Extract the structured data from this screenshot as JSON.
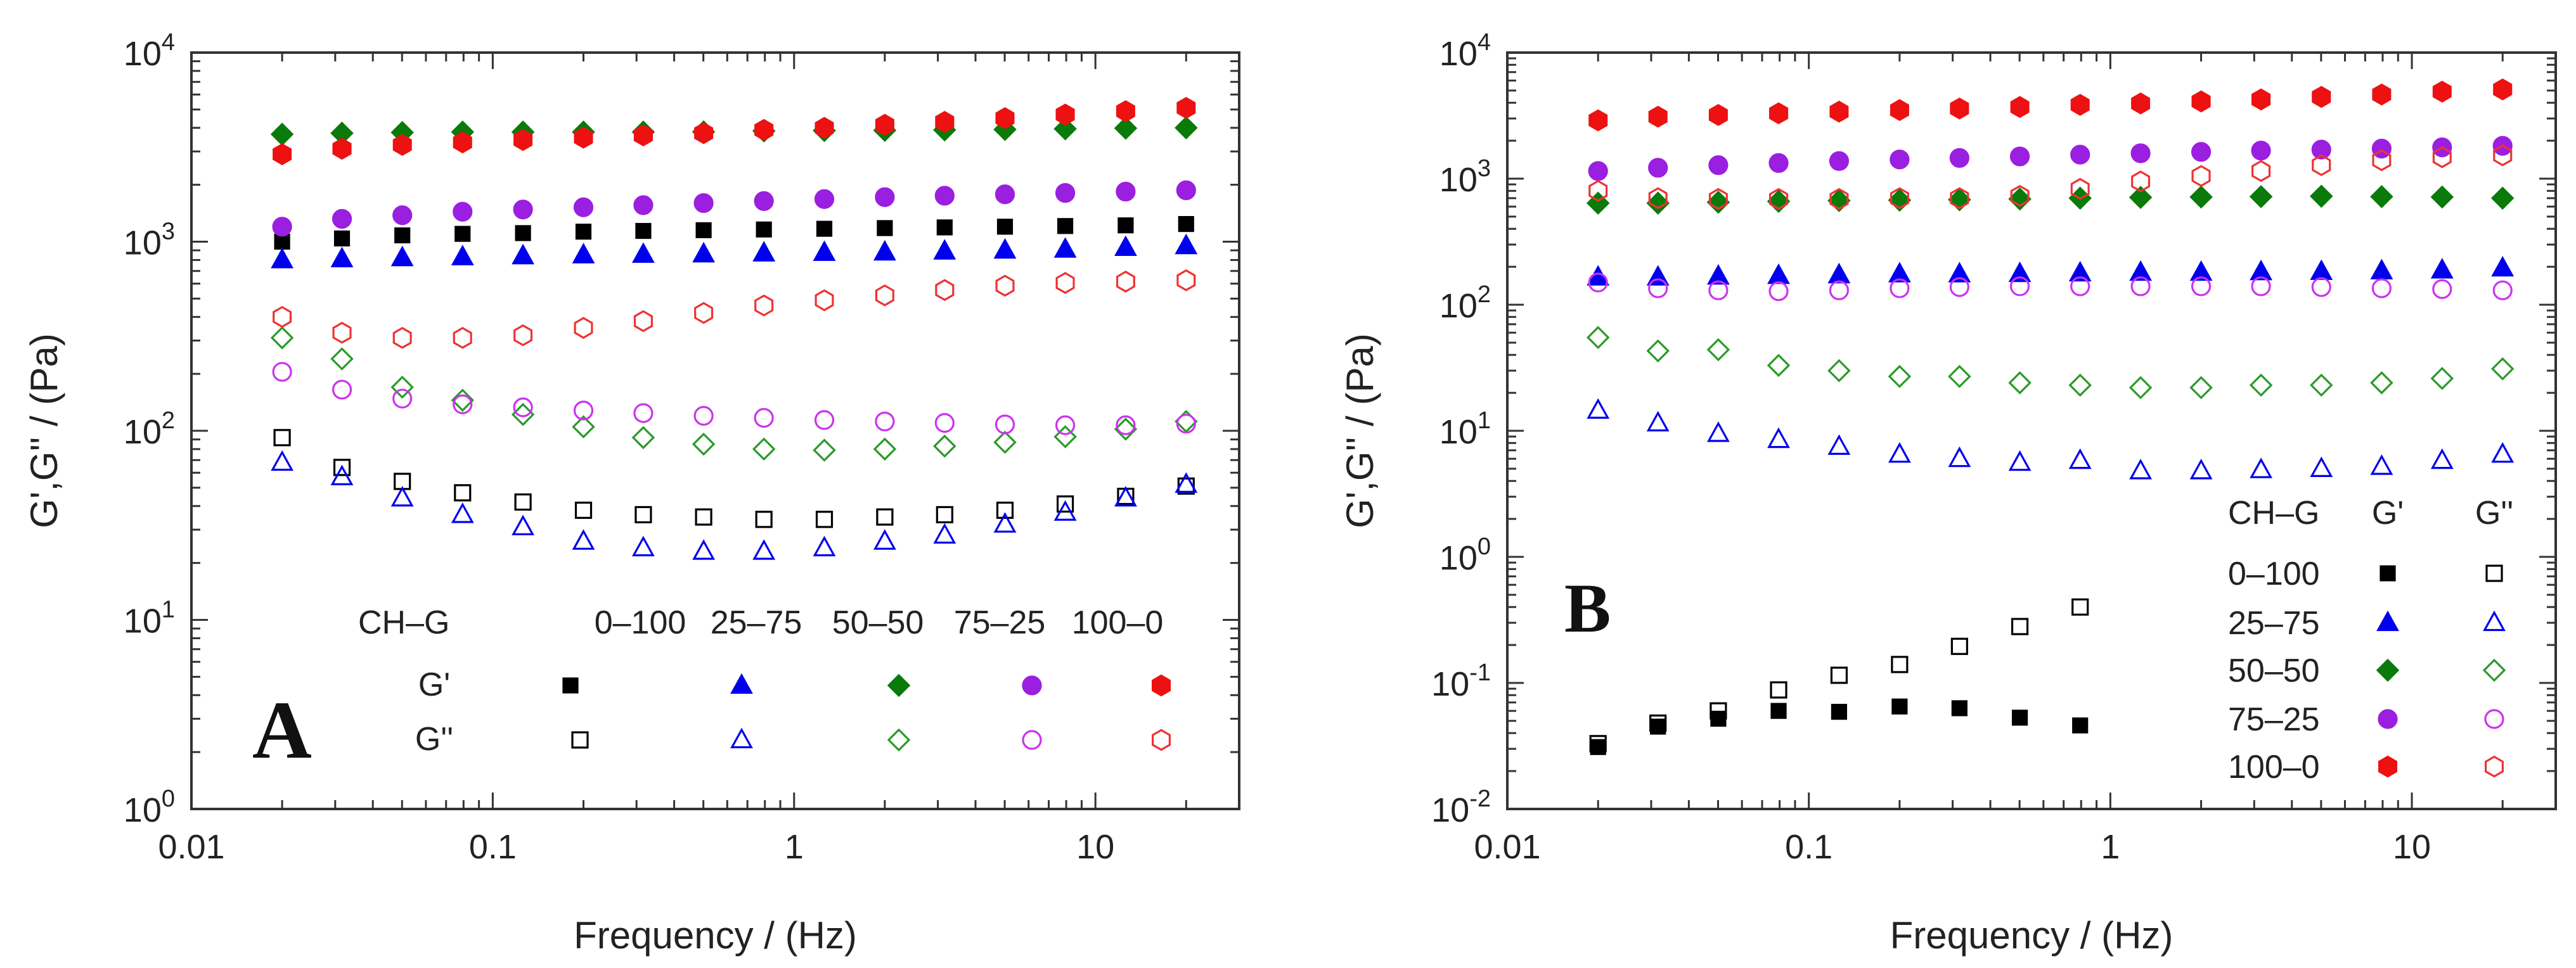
{
  "chart_data": [
    {
      "type": "scatter",
      "panel": "A",
      "xlabel": "Frequency / (Hz)",
      "ylabel": "G',G'' / (Pa)",
      "xscale": "log",
      "yscale": "log",
      "xlim": [
        0.01,
        30
      ],
      "ylim": [
        1,
        10000
      ],
      "x_ticks": [
        {
          "v": 0.01,
          "t": "0.01"
        },
        {
          "v": 0.1,
          "t": "0.1"
        },
        {
          "v": 1,
          "t": "1"
        },
        {
          "v": 10,
          "t": "10"
        }
      ],
      "y_ticks": [
        {
          "v": 1,
          "b": "10",
          "e": "0"
        },
        {
          "v": 10,
          "b": "10",
          "e": "1"
        },
        {
          "v": 100,
          "b": "10",
          "e": "2"
        },
        {
          "v": 1000,
          "b": "10",
          "e": "3"
        },
        {
          "v": 10000,
          "b": "10",
          "e": "4"
        }
      ],
      "legend": {
        "layout": "columns",
        "placement": "bottom-right",
        "header": "CH–G",
        "row_labels": [
          "G'",
          "G''"
        ],
        "entries": [
          "0–100",
          "25–75",
          "50–50",
          "75–25",
          "100–0"
        ]
      },
      "x": [
        0.02,
        0.0316,
        0.0501,
        0.0794,
        0.126,
        0.2,
        0.316,
        0.501,
        0.794,
        1.26,
        2.0,
        3.16,
        5.01,
        7.94,
        12.6,
        20.0
      ],
      "series": [
        {
          "name": "0–100 G'",
          "group": "0–100",
          "modulus": "G'",
          "color": "#000000",
          "marker": "square",
          "filled": true,
          "values": [
            1000,
            1040,
            1080,
            1100,
            1110,
            1130,
            1140,
            1150,
            1160,
            1170,
            1180,
            1190,
            1200,
            1210,
            1220,
            1240
          ]
        },
        {
          "name": "25–75 G'",
          "group": "25–75",
          "modulus": "G'",
          "color": "#0000ee",
          "marker": "triangle",
          "filled": true,
          "values": [
            800,
            810,
            820,
            830,
            840,
            850,
            855,
            860,
            870,
            875,
            880,
            890,
            900,
            910,
            930,
            950
          ]
        },
        {
          "name": "50–50 G'",
          "group": "50–50",
          "modulus": "G'",
          "color": "#0a7a0a",
          "marker": "diamond",
          "filled": true,
          "values": [
            3700,
            3750,
            3780,
            3800,
            3800,
            3800,
            3800,
            3810,
            3850,
            3870,
            3880,
            3900,
            3920,
            3950,
            3980,
            4000
          ]
        },
        {
          "name": "75–25 G'",
          "group": "75–25",
          "modulus": "G'",
          "color": "#9a1fe0",
          "marker": "circle",
          "filled": true,
          "values": [
            1200,
            1320,
            1380,
            1440,
            1480,
            1520,
            1560,
            1600,
            1640,
            1680,
            1720,
            1750,
            1780,
            1810,
            1840,
            1870
          ]
        },
        {
          "name": "100–0 G'",
          "group": "100–0",
          "modulus": "G'",
          "color": "#ee1111",
          "marker": "hexagon",
          "filled": true,
          "values": [
            2900,
            3100,
            3250,
            3350,
            3450,
            3550,
            3650,
            3750,
            3900,
            4000,
            4150,
            4300,
            4500,
            4700,
            4900,
            5100
          ]
        },
        {
          "name": "0–100 G''",
          "group": "0–100",
          "modulus": "G''",
          "color": "#000000",
          "marker": "square",
          "filled": false,
          "values": [
            92,
            64,
            54,
            47,
            42,
            38,
            36,
            35,
            34,
            34,
            35,
            36,
            38,
            41,
            45,
            51
          ]
        },
        {
          "name": "25–75 G''",
          "group": "25–75",
          "modulus": "G''",
          "color": "#0000ee",
          "marker": "triangle",
          "filled": false,
          "values": [
            68,
            57,
            44,
            36,
            31,
            26,
            24,
            23,
            23,
            24,
            26,
            28,
            32,
            37,
            44,
            52
          ]
        },
        {
          "name": "50–50 G''",
          "group": "50–50",
          "modulus": "G''",
          "color": "#2a9a2a",
          "marker": "diamond",
          "filled": false,
          "values": [
            310,
            240,
            170,
            145,
            122,
            105,
            92,
            85,
            80,
            79,
            80,
            83,
            87,
            93,
            102,
            112
          ]
        },
        {
          "name": "75–25 G''",
          "group": "75–25",
          "modulus": "G''",
          "color": "#cc33ee",
          "marker": "circle",
          "filled": false,
          "values": [
            205,
            165,
            148,
            138,
            133,
            128,
            124,
            120,
            117,
            114,
            112,
            110,
            108,
            107,
            107,
            109
          ]
        },
        {
          "name": "100–0 G''",
          "group": "100–0",
          "modulus": "G''",
          "color": "#ee3333",
          "marker": "hexagon",
          "filled": false,
          "values": [
            400,
            330,
            310,
            310,
            320,
            350,
            380,
            420,
            460,
            490,
            520,
            555,
            585,
            605,
            615,
            625
          ]
        }
      ]
    },
    {
      "type": "scatter",
      "panel": "B",
      "xlabel": "Frequency / (Hz)",
      "ylabel": "G',G'' / (Pa)",
      "xscale": "log",
      "yscale": "log",
      "xlim": [
        0.01,
        30
      ],
      "ylim": [
        0.01,
        10000
      ],
      "x_ticks": [
        {
          "v": 0.01,
          "t": "0.01"
        },
        {
          "v": 0.1,
          "t": "0.1"
        },
        {
          "v": 1,
          "t": "1"
        },
        {
          "v": 10,
          "t": "10"
        }
      ],
      "y_ticks": [
        {
          "v": 0.01,
          "b": "10",
          "e": "-2"
        },
        {
          "v": 0.1,
          "b": "10",
          "e": "-1"
        },
        {
          "v": 1,
          "b": "10",
          "e": "0"
        },
        {
          "v": 10,
          "b": "10",
          "e": "1"
        },
        {
          "v": 100,
          "b": "10",
          "e": "2"
        },
        {
          "v": 1000,
          "b": "10",
          "e": "3"
        },
        {
          "v": 10000,
          "b": "10",
          "e": "4"
        }
      ],
      "legend": {
        "layout": "rows",
        "placement": "bottom-right",
        "header": "CH–G",
        "col_labels": [
          "G'",
          "G''"
        ],
        "entries": [
          "0–100",
          "25–75",
          "50–50",
          "75–25",
          "100–0"
        ]
      },
      "x": [
        0.02,
        0.0316,
        0.0501,
        0.0794,
        0.126,
        0.2,
        0.316,
        0.501,
        0.794,
        1.26,
        2.0,
        3.16,
        5.01,
        7.94,
        12.6,
        20.0
      ],
      "series": [
        {
          "name": "0–100 G'",
          "group": "0–100",
          "modulus": "G'",
          "color": "#000000",
          "marker": "square",
          "filled": true,
          "values": [
            0.031,
            0.045,
            0.052,
            0.06,
            0.059,
            0.065,
            0.063,
            0.053,
            0.046,
            null,
            null,
            null,
            null,
            null,
            null,
            null
          ]
        },
        {
          "name": "25–75 G'",
          "group": "25–75",
          "modulus": "G'",
          "color": "#0000ee",
          "marker": "triangle",
          "filled": true,
          "values": [
            165,
            165,
            168,
            170,
            172,
            175,
            175,
            176,
            178,
            180,
            180,
            182,
            183,
            185,
            188,
            195
          ]
        },
        {
          "name": "50–50 G'",
          "group": "50–50",
          "modulus": "G'",
          "color": "#0a7a0a",
          "marker": "diamond",
          "filled": true,
          "values": [
            640,
            640,
            650,
            660,
            670,
            675,
            680,
            690,
            700,
            710,
            715,
            720,
            725,
            720,
            715,
            700
          ]
        },
        {
          "name": "75–25 G'",
          "group": "75–25",
          "modulus": "G'",
          "color": "#9a1fe0",
          "marker": "circle",
          "filled": true,
          "values": [
            1150,
            1220,
            1280,
            1330,
            1380,
            1420,
            1460,
            1500,
            1550,
            1590,
            1630,
            1670,
            1700,
            1730,
            1770,
            1820
          ]
        },
        {
          "name": "100–0 G'",
          "group": "100–0",
          "modulus": "G'",
          "color": "#ee1111",
          "marker": "hexagon",
          "filled": true,
          "values": [
            2900,
            3100,
            3200,
            3300,
            3400,
            3500,
            3600,
            3700,
            3850,
            3950,
            4100,
            4250,
            4450,
            4650,
            4900,
            5100
          ]
        },
        {
          "name": "0–100 G''",
          "group": "0–100",
          "modulus": "G''",
          "color": "#000000",
          "marker": "square",
          "filled": false,
          "values": [
            0.033,
            0.048,
            0.06,
            0.088,
            0.115,
            0.14,
            0.195,
            0.28,
            0.4,
            null,
            null,
            null,
            null,
            null,
            null,
            null
          ]
        },
        {
          "name": "25–75 G''",
          "group": "25–75",
          "modulus": "G''",
          "color": "#0000ee",
          "marker": "triangle",
          "filled": false,
          "values": [
            14.5,
            11.5,
            9.5,
            8.5,
            7.5,
            6.5,
            6.0,
            5.6,
            5.8,
            4.8,
            4.8,
            4.9,
            5.0,
            5.2,
            5.8,
            6.5
          ]
        },
        {
          "name": "50–50 G''",
          "group": "50–50",
          "modulus": "G''",
          "color": "#2a9a2a",
          "marker": "diamond",
          "filled": false,
          "values": [
            55,
            43,
            44,
            33,
            30,
            27,
            27,
            24,
            23,
            22,
            22,
            23,
            23,
            24,
            26,
            31
          ]
        },
        {
          "name": "75–25 G''",
          "group": "75–25",
          "modulus": "G''",
          "color": "#cc33ee",
          "marker": "circle",
          "filled": false,
          "values": [
            150,
            135,
            130,
            128,
            130,
            135,
            138,
            140,
            140,
            140,
            140,
            140,
            138,
            135,
            133,
            130
          ]
        },
        {
          "name": "100–0 G''",
          "group": "100–0",
          "modulus": "G''",
          "color": "#ee3333",
          "marker": "hexagon",
          "filled": false,
          "values": [
            800,
            700,
            690,
            690,
            690,
            700,
            700,
            730,
            830,
            950,
            1050,
            1150,
            1280,
            1400,
            1480,
            1530
          ]
        }
      ]
    }
  ]
}
